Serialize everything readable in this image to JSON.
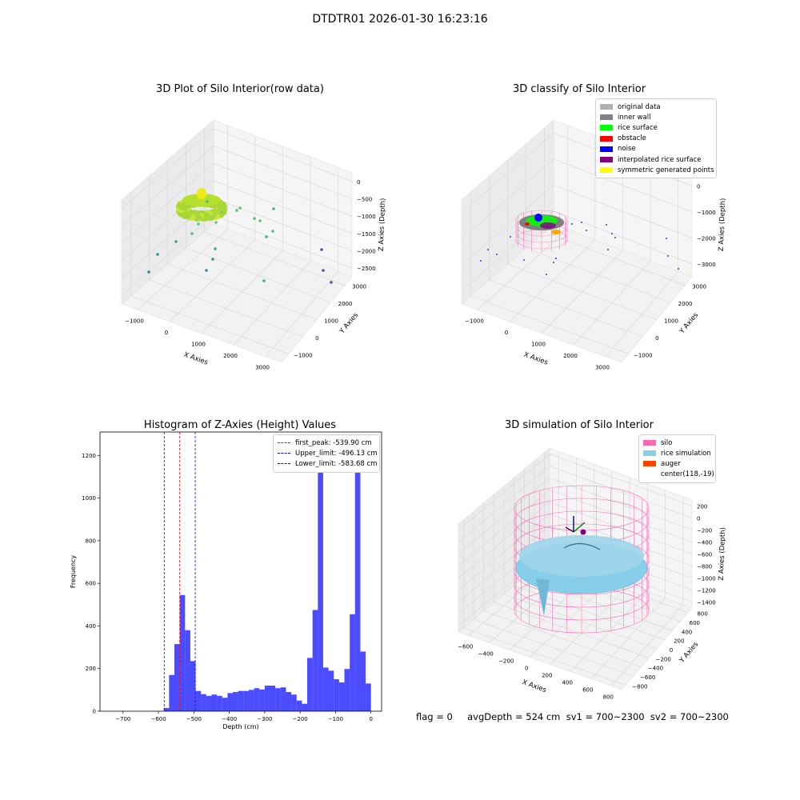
{
  "suptitle": "DTDTR01 2026-01-30 16:23:16",
  "colors": {
    "histogram_bar": "#0000ff",
    "peak_line": "#ff0000",
    "limit_line": "#0000ff",
    "silo_mesh": "#ff69b4",
    "rice_surface": "#87ceeb"
  },
  "panels": {
    "raw": {
      "title": "3D Plot of Silo Interior(row data)",
      "xlabel": "X Axies",
      "ylabel": "Y Axies",
      "zlabel": "Z Axies (Depth)",
      "x_ticks": [
        "−1000",
        "0",
        "1000",
        "2000",
        "3000"
      ],
      "y_ticks": [
        "−1000",
        "0",
        "1000",
        "2000",
        "3000"
      ],
      "z_ticks": [
        "0",
        "−500",
        "−1000",
        "−1500",
        "−2000",
        "−2500"
      ]
    },
    "classify": {
      "title": "3D classify of Silo Interior",
      "xlabel": "X Axies",
      "ylabel": "Y Axies",
      "zlabel": "Z Axies (Depth)",
      "x_ticks": [
        "−1000",
        "0",
        "1000",
        "2000",
        "3000"
      ],
      "y_ticks": [
        "−1000",
        "0",
        "1000",
        "2000",
        "3000"
      ],
      "z_ticks": [
        "0",
        "−1000",
        "−2000",
        "−3000"
      ],
      "legend": [
        {
          "label": "original data",
          "color": "#b0b0b0"
        },
        {
          "label": "inner wall",
          "color": "#808080"
        },
        {
          "label": "rice surface",
          "color": "#00ff00"
        },
        {
          "label": "obstacle",
          "color": "#ff0000"
        },
        {
          "label": "noise",
          "color": "#0000ff"
        },
        {
          "label": "interpolated rice surface",
          "color": "#800080"
        },
        {
          "label": "symmetric generated points",
          "color": "#ffff00"
        }
      ]
    },
    "simulation": {
      "title": "3D simulation of Silo Interior",
      "xlabel": "X Axies",
      "ylabel": "Y Axies",
      "zlabel": "Z Axies (Depth)",
      "x_ticks": [
        "−600",
        "−400",
        "−200",
        "0",
        "200",
        "400",
        "600",
        "800"
      ],
      "y_ticks": [
        "−800",
        "−600",
        "−400",
        "−200",
        "0",
        "200",
        "400",
        "600",
        "800"
      ],
      "z_ticks": [
        "200",
        "0",
        "−200",
        "−400",
        "−600",
        "−800",
        "−1000",
        "−1200",
        "−1400"
      ],
      "legend": [
        {
          "label": "silo",
          "color": "#ff69b4"
        },
        {
          "label": "rice simulation",
          "color": "#87ceeb"
        },
        {
          "label": "auger",
          "color": "#ff4500"
        },
        {
          "label": "center(118,-19)",
          "color": ""
        }
      ]
    }
  },
  "status_text": "flag = 0     avgDepth = 524 cm  sv1 = 700~2300  sv2 = 700~2300",
  "chart_data": {
    "type": "bar",
    "title": "Histogram of Z-Axies (Height) Values",
    "xlabel": "Depth (cm)",
    "ylabel": "Frequency",
    "xlim": [
      -765,
      30
    ],
    "ylim": [
      0,
      1310
    ],
    "x_ticks": [
      -700,
      -600,
      -500,
      -400,
      -300,
      -200,
      -100,
      0
    ],
    "y_ticks": [
      0,
      200,
      400,
      600,
      800,
      1000,
      1200
    ],
    "bin_width": 15,
    "bins_start": [
      -585,
      -570,
      -555,
      -540,
      -525,
      -510,
      -495,
      -480,
      -465,
      -450,
      -435,
      -420,
      -405,
      -390,
      -375,
      -360,
      -345,
      -330,
      -315,
      -300,
      -285,
      -270,
      -255,
      -240,
      -225,
      -210,
      -195,
      -180,
      -165,
      -150,
      -135,
      -120,
      -105,
      -90,
      -75,
      -60,
      -45,
      -30,
      -15
    ],
    "values": [
      15,
      170,
      315,
      545,
      380,
      235,
      95,
      80,
      72,
      78,
      72,
      63,
      85,
      90,
      95,
      95,
      100,
      108,
      102,
      120,
      120,
      108,
      112,
      90,
      78,
      50,
      35,
      250,
      475,
      1235,
      205,
      190,
      150,
      135,
      198,
      455,
      1130,
      280,
      130
    ],
    "vlines": [
      {
        "label": "first_peak: -539.90 cm",
        "x": -539.9,
        "color": "#ff0000"
      },
      {
        "label": "Upper_limit: -496.13 cm",
        "x": -496.13,
        "color": "#0000ff"
      },
      {
        "label": "Lower_limit: -583.68 cm",
        "x": -583.68,
        "color": "#0000ff"
      }
    ]
  }
}
